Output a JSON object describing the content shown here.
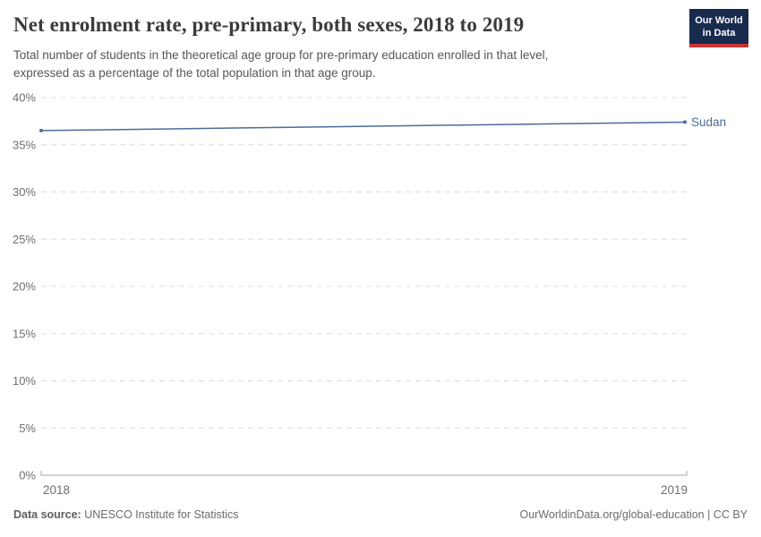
{
  "header": {
    "title": "Net enrolment rate, pre-primary, both sexes, 2018 to 2019",
    "subtitle_lines": [
      "Total number of students in the theoretical age group for pre-primary education enrolled in that level,",
      "expressed as a percentage of the total population in that age group."
    ]
  },
  "logo": {
    "line1": "Our World",
    "line2": "in Data",
    "bg_color": "#182a4e",
    "stripe_color": "#cb3434"
  },
  "chart_data": {
    "type": "line",
    "title": "Net enrolment rate, pre-primary, both sexes, 2018 to 2019",
    "x": [
      2018,
      2019
    ],
    "xtick_labels": [
      "2018",
      "2019"
    ],
    "series": [
      {
        "name": "Sudan",
        "values": [
          36.5,
          37.4
        ],
        "color": "#4c6a9c"
      }
    ],
    "ylim": [
      0,
      40
    ],
    "ytick_step": 5,
    "ytick_labels": [
      "0%",
      "5%",
      "10%",
      "15%",
      "20%",
      "25%",
      "30%",
      "35%",
      "40%"
    ],
    "grid": true,
    "gridline_color": "#dcdcdc",
    "axis_color": "#a5a5a5",
    "tick_label_color": "#6e6e6e",
    "legend_position": "end-of-line"
  },
  "footer": {
    "source_label": "Data source:",
    "source_value": "UNESCO Institute for Statistics",
    "credit": "OurWorldinData.org/global-education | CC BY"
  }
}
